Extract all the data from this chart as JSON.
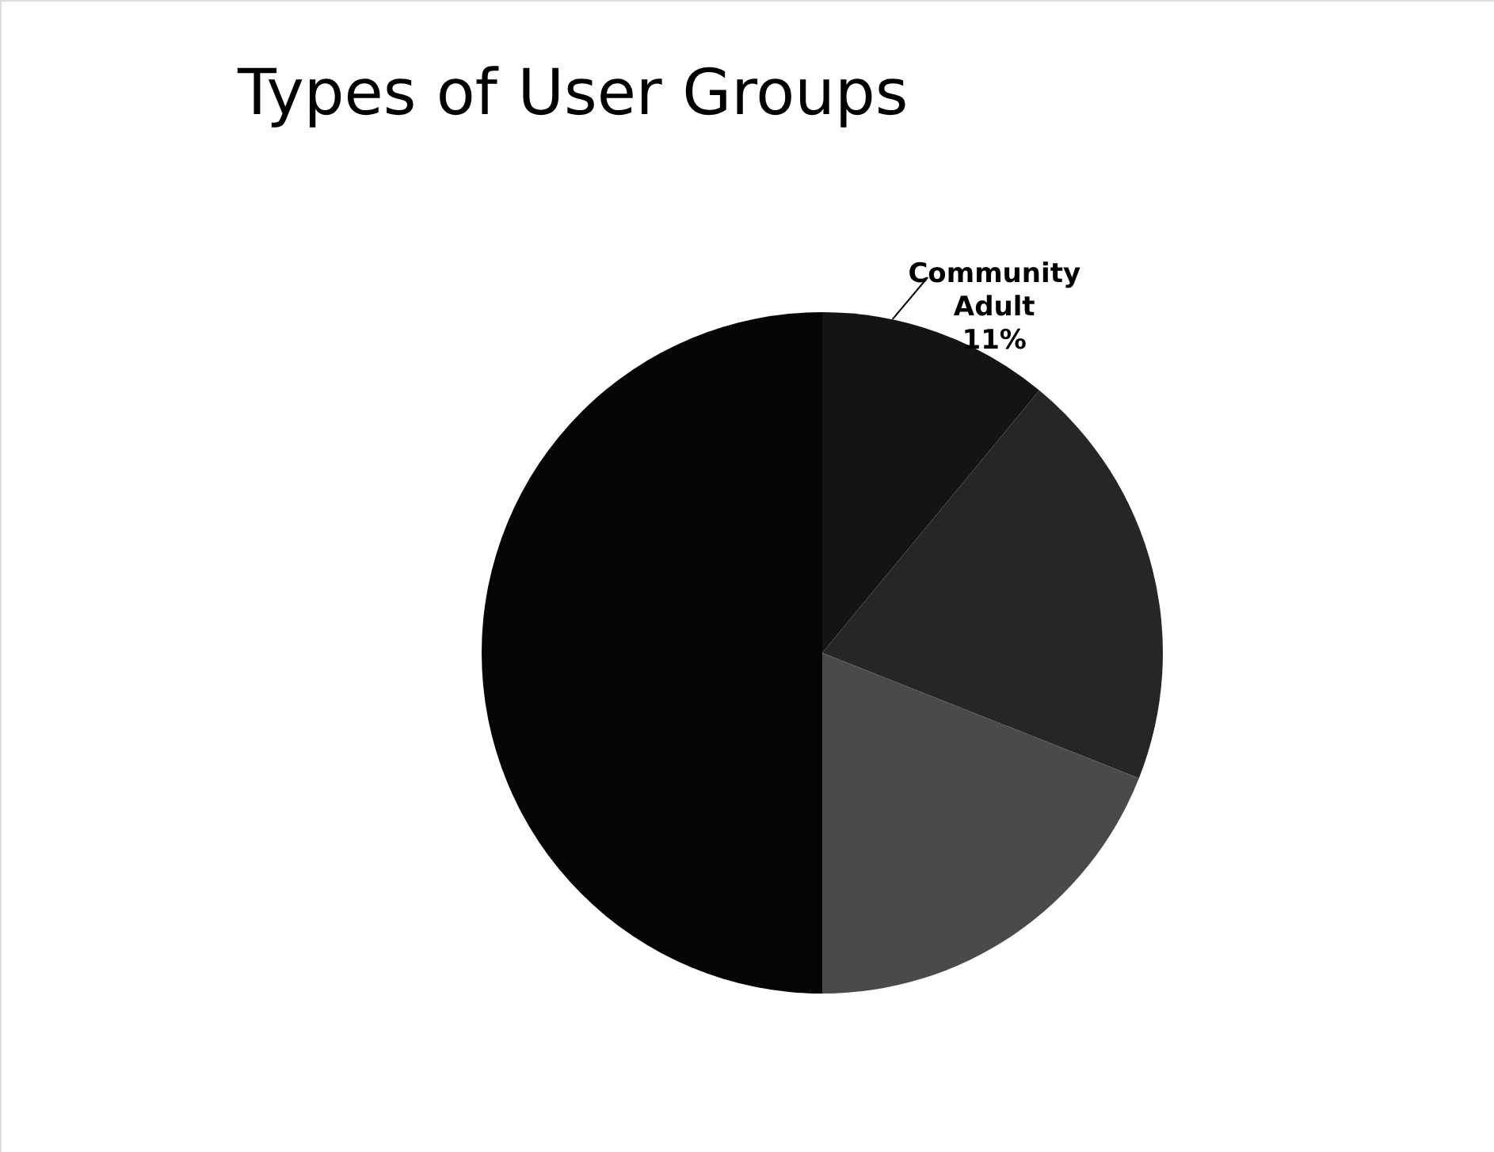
{
  "chart_data": {
    "type": "pie",
    "title": "Types of User Groups",
    "categories": [
      "Community Adult",
      null,
      null,
      null
    ],
    "values": [
      11,
      20,
      19,
      50
    ],
    "value_labels": [
      "11%",
      null,
      null,
      null
    ],
    "colors": [
      "#141414",
      "#262626",
      "#4a4a4a",
      "#050505"
    ],
    "legend": false
  }
}
